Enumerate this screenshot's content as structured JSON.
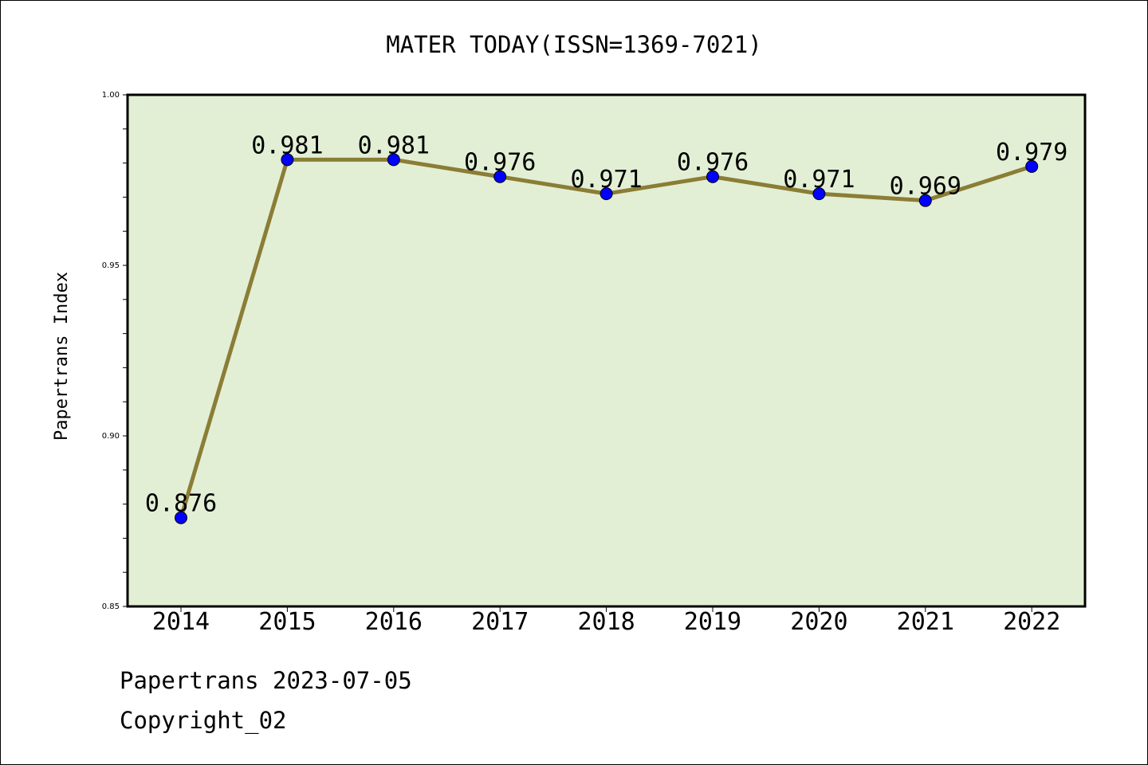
{
  "chart_data": {
    "type": "line",
    "title": "MATER TODAY(ISSN=1369-7021)",
    "xlabel": "",
    "ylabel": "Papertrans Index",
    "categories": [
      "2014",
      "2015",
      "2016",
      "2017",
      "2018",
      "2019",
      "2020",
      "2021",
      "2022"
    ],
    "values": [
      0.876,
      0.981,
      0.981,
      0.976,
      0.971,
      0.976,
      0.971,
      0.969,
      0.979
    ],
    "data_labels": [
      "0.876",
      "0.981",
      "0.981",
      "0.976",
      "0.971",
      "0.976",
      "0.971",
      "0.969",
      "0.979"
    ],
    "ylim": [
      0.85,
      1.0
    ],
    "yticks": [
      "0.85",
      "0.90",
      "0.95",
      "1.00"
    ],
    "grid": false,
    "colors": {
      "plot_background": "#e2efd5",
      "line": "#8b7d35",
      "marker": "#0000ff"
    }
  },
  "footer": {
    "source": "Papertrans 2023-07-05",
    "copyright": "Copyright_02"
  }
}
